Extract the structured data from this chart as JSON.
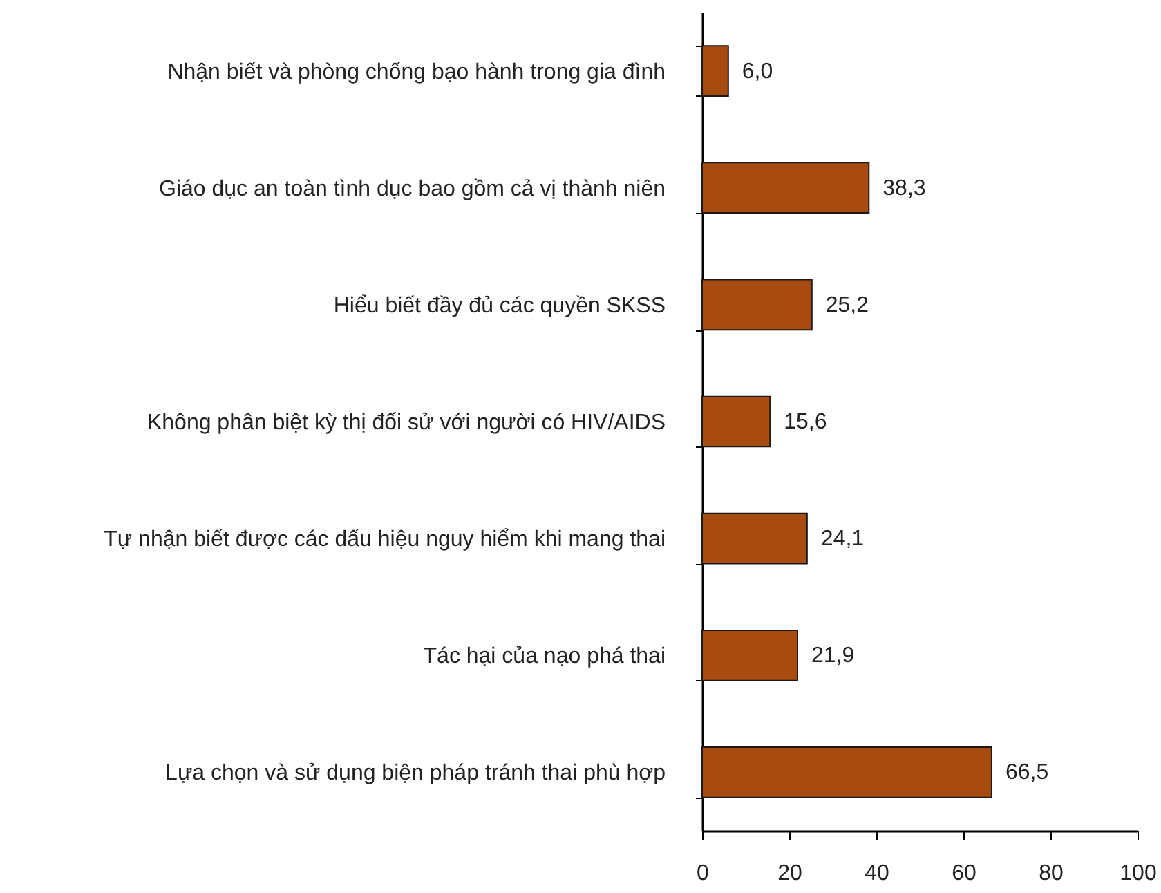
{
  "chart_data": {
    "type": "bar",
    "orientation": "horizontal",
    "categories": [
      "Nhận biết và phòng chống bạo hành trong gia đình",
      "Giáo dục an toàn tình dục bao gồm cả vị thành niên",
      "Hiểu biết đầy đủ các quyền SKSS",
      "Không phân biệt kỳ thị đối sử với  người có HIV/AIDS",
      "Tự nhận biết được các dấu hiệu nguy hiểm khi mang thai",
      "Tác hại của nạo phá thai",
      "Lựa chọn và sử dụng biện pháp tránh thai phù hợp"
    ],
    "values": [
      6.0,
      38.3,
      25.2,
      15.6,
      24.1,
      21.9,
      66.5
    ],
    "value_labels": [
      "6,0",
      "38,3",
      "25,2",
      "15,6",
      "24,1",
      "21,9",
      "66,5"
    ],
    "color": "#a84b10",
    "xlim": [
      0,
      100
    ],
    "xticks": [
      0,
      20,
      40,
      60,
      80,
      100
    ],
    "grid": false
  }
}
